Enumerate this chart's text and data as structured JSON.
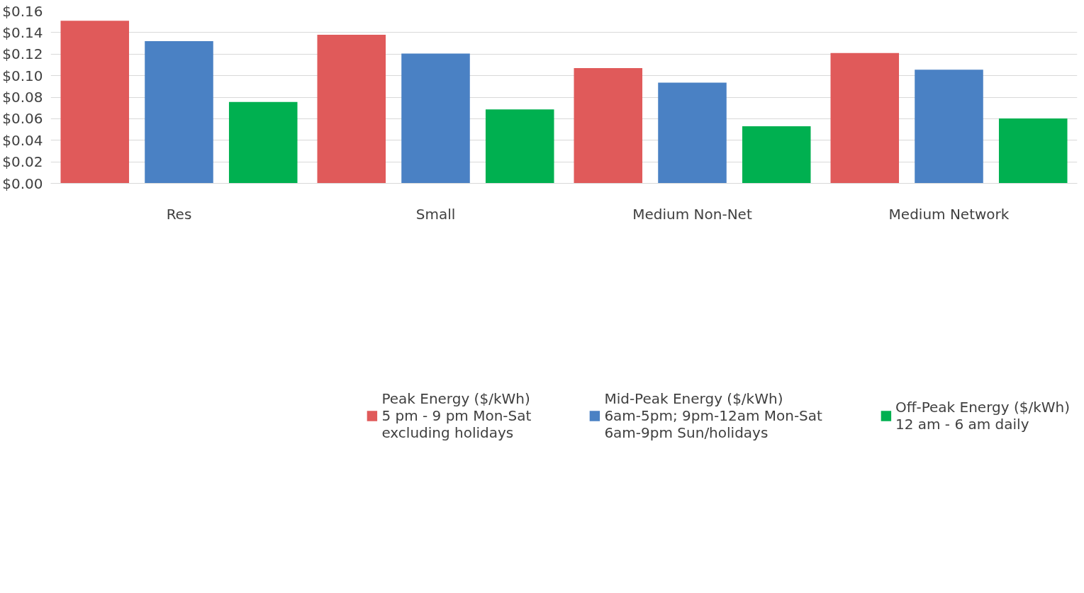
{
  "chart_data": {
    "type": "bar",
    "categories": [
      "Res",
      "Small",
      "Medium Non-Net",
      "Medium Network"
    ],
    "series": [
      {
        "name": "Peak Energy ($/kWh)\n5 pm - 9 pm Mon-Sat\nexcluding holidays",
        "color": "#e05a5a",
        "values": [
          0.151,
          0.138,
          0.107,
          0.121
        ]
      },
      {
        "name": "Mid-Peak Energy ($/kWh)\n6am-5pm; 9pm-12am Mon-Sat\n6am-9pm Sun/holidays",
        "color": "#4a81c4",
        "values": [
          0.132,
          0.1205,
          0.0935,
          0.1055
        ]
      },
      {
        "name": "Off-Peak Energy ($/kWh)\n12 am - 6 am daily",
        "color": "#00b050",
        "values": [
          0.0755,
          0.0686,
          0.053,
          0.0602
        ]
      }
    ],
    "ylim": [
      0,
      0.16
    ],
    "yticks": [
      {
        "value": 0,
        "label": "$0.00"
      },
      {
        "value": 0.02,
        "label": "$0.02"
      },
      {
        "value": 0.04,
        "label": "$0.04"
      },
      {
        "value": 0.06,
        "label": "$0.06"
      },
      {
        "value": 0.08,
        "label": "$0.08"
      },
      {
        "value": 0.1,
        "label": "$0.10"
      },
      {
        "value": 0.12,
        "label": "$0.12"
      },
      {
        "value": 0.14,
        "label": "$0.14"
      },
      {
        "value": 0.16,
        "label": "$0.16"
      }
    ],
    "grid": "y",
    "legend": "bottom"
  }
}
